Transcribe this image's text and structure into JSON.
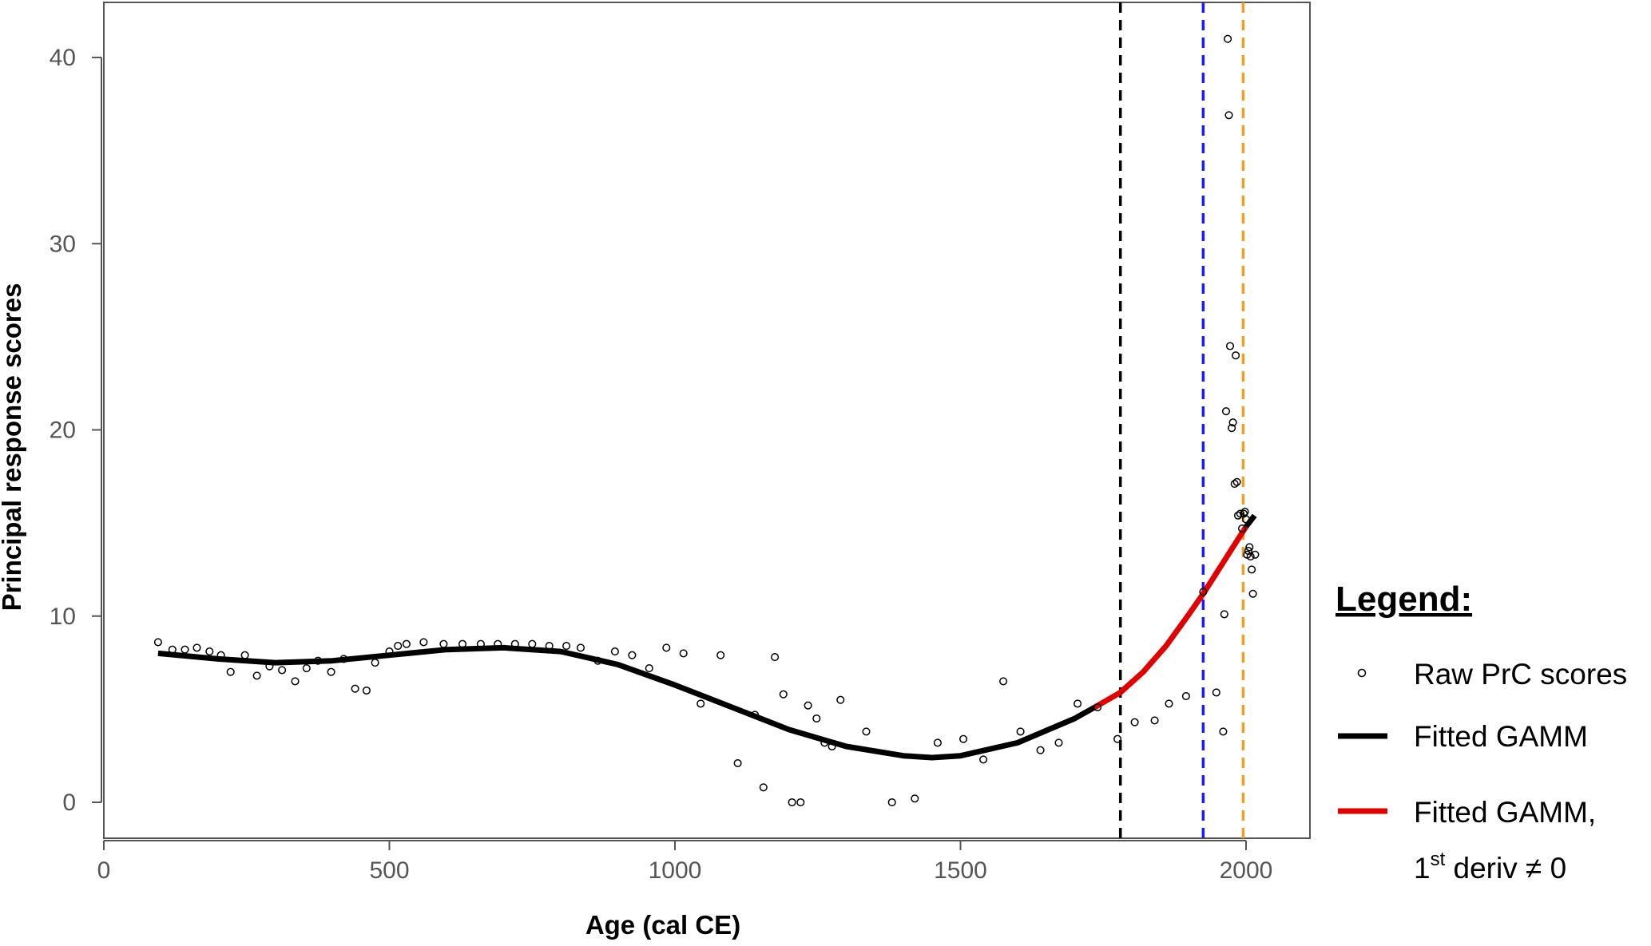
{
  "chart_data": {
    "type": "scatter",
    "xlabel": "Age (cal CE)",
    "ylabel": "Principal response scores",
    "xlim": [
      0,
      2110
    ],
    "ylim": [
      -2,
      43
    ],
    "x_ticks": [
      0,
      500,
      1000,
      1500,
      2000
    ],
    "y_ticks": [
      0,
      10,
      20,
      30,
      40
    ],
    "grid": false,
    "legend_position": "right",
    "legend": {
      "title": "Legend:",
      "items": [
        {
          "label": "Raw PrC scores",
          "symbol": "open-circle",
          "color": "#000000"
        },
        {
          "label": "Fitted GAMM",
          "symbol": "line",
          "color": "#000000"
        },
        {
          "label": "Fitted GAMM,",
          "label_line2_base": "1",
          "label_line2_sup": "st",
          "label_line2_rest": " deriv ≠ 0",
          "symbol": "line",
          "color": "#e00000"
        }
      ]
    },
    "reference_lines": [
      {
        "x": 1780,
        "color": "#000000",
        "style": "dashed"
      },
      {
        "x": 1925,
        "color": "#1a1aff",
        "style": "dashed"
      },
      {
        "x": 1995,
        "color": "#f0a020",
        "style": "dashed"
      }
    ],
    "raw_points": [
      {
        "x": 95,
        "y": 8.6
      },
      {
        "x": 120,
        "y": 8.2
      },
      {
        "x": 142,
        "y": 8.2
      },
      {
        "x": 163,
        "y": 8.3
      },
      {
        "x": 185,
        "y": 8.1
      },
      {
        "x": 205,
        "y": 7.9
      },
      {
        "x": 222,
        "y": 7.0
      },
      {
        "x": 247,
        "y": 7.9
      },
      {
        "x": 268,
        "y": 6.8
      },
      {
        "x": 290,
        "y": 7.3
      },
      {
        "x": 312,
        "y": 7.1
      },
      {
        "x": 335,
        "y": 6.5
      },
      {
        "x": 355,
        "y": 7.2
      },
      {
        "x": 375,
        "y": 7.6
      },
      {
        "x": 398,
        "y": 7.0
      },
      {
        "x": 420,
        "y": 7.7
      },
      {
        "x": 440,
        "y": 6.1
      },
      {
        "x": 460,
        "y": 6.0
      },
      {
        "x": 475,
        "y": 7.5
      },
      {
        "x": 500,
        "y": 8.1
      },
      {
        "x": 515,
        "y": 8.4
      },
      {
        "x": 530,
        "y": 8.5
      },
      {
        "x": 560,
        "y": 8.6
      },
      {
        "x": 595,
        "y": 8.5
      },
      {
        "x": 628,
        "y": 8.5
      },
      {
        "x": 660,
        "y": 8.5
      },
      {
        "x": 690,
        "y": 8.5
      },
      {
        "x": 720,
        "y": 8.5
      },
      {
        "x": 750,
        "y": 8.5
      },
      {
        "x": 780,
        "y": 8.4
      },
      {
        "x": 810,
        "y": 8.4
      },
      {
        "x": 835,
        "y": 8.3
      },
      {
        "x": 865,
        "y": 7.6
      },
      {
        "x": 895,
        "y": 8.1
      },
      {
        "x": 925,
        "y": 7.9
      },
      {
        "x": 955,
        "y": 7.2
      },
      {
        "x": 985,
        "y": 8.3
      },
      {
        "x": 1015,
        "y": 8.0
      },
      {
        "x": 1045,
        "y": 5.3
      },
      {
        "x": 1080,
        "y": 7.9
      },
      {
        "x": 1110,
        "y": 2.1
      },
      {
        "x": 1140,
        "y": 4.7
      },
      {
        "x": 1155,
        "y": 0.8
      },
      {
        "x": 1175,
        "y": 7.8
      },
      {
        "x": 1190,
        "y": 5.8
      },
      {
        "x": 1205,
        "y": 0.0
      },
      {
        "x": 1220,
        "y": 0.0
      },
      {
        "x": 1233,
        "y": 5.2
      },
      {
        "x": 1248,
        "y": 4.5
      },
      {
        "x": 1262,
        "y": 3.2
      },
      {
        "x": 1275,
        "y": 3.0
      },
      {
        "x": 1290,
        "y": 5.5
      },
      {
        "x": 1335,
        "y": 3.8
      },
      {
        "x": 1380,
        "y": 0.0
      },
      {
        "x": 1420,
        "y": 0.2
      },
      {
        "x": 1460,
        "y": 3.2
      },
      {
        "x": 1505,
        "y": 3.4
      },
      {
        "x": 1540,
        "y": 2.3
      },
      {
        "x": 1575,
        "y": 6.5
      },
      {
        "x": 1605,
        "y": 3.8
      },
      {
        "x": 1640,
        "y": 2.8
      },
      {
        "x": 1672,
        "y": 3.2
      },
      {
        "x": 1705,
        "y": 5.3
      },
      {
        "x": 1740,
        "y": 5.1
      },
      {
        "x": 1775,
        "y": 3.4
      },
      {
        "x": 1805,
        "y": 4.3
      },
      {
        "x": 1840,
        "y": 4.4
      },
      {
        "x": 1865,
        "y": 5.3
      },
      {
        "x": 1895,
        "y": 5.7
      },
      {
        "x": 1925,
        "y": 11.3
      },
      {
        "x": 1948,
        "y": 5.9
      },
      {
        "x": 1960,
        "y": 3.8
      },
      {
        "x": 1962,
        "y": 10.1
      },
      {
        "x": 1965,
        "y": 21.0
      },
      {
        "x": 1968,
        "y": 41.0
      },
      {
        "x": 1970,
        "y": 36.9
      },
      {
        "x": 1972,
        "y": 24.5
      },
      {
        "x": 1975,
        "y": 20.1
      },
      {
        "x": 1977,
        "y": 20.4
      },
      {
        "x": 1980,
        "y": 17.1
      },
      {
        "x": 1982,
        "y": 24.0
      },
      {
        "x": 1984,
        "y": 17.2
      },
      {
        "x": 1986,
        "y": 15.4
      },
      {
        "x": 1990,
        "y": 15.5
      },
      {
        "x": 1993,
        "y": 14.7
      },
      {
        "x": 1996,
        "y": 15.5
      },
      {
        "x": 1998,
        "y": 15.6
      },
      {
        "x": 2000,
        "y": 15.2
      },
      {
        "x": 2002,
        "y": 13.3
      },
      {
        "x": 2004,
        "y": 13.5
      },
      {
        "x": 2006,
        "y": 13.7
      },
      {
        "x": 2008,
        "y": 13.2
      },
      {
        "x": 2010,
        "y": 12.5
      },
      {
        "x": 2012,
        "y": 11.2
      },
      {
        "x": 2016,
        "y": 13.3
      }
    ],
    "fitted_black_segment_1": [
      {
        "x": 95,
        "y": 8.0
      },
      {
        "x": 200,
        "y": 7.7
      },
      {
        "x": 300,
        "y": 7.5
      },
      {
        "x": 400,
        "y": 7.6
      },
      {
        "x": 500,
        "y": 7.9
      },
      {
        "x": 600,
        "y": 8.2
      },
      {
        "x": 700,
        "y": 8.3
      },
      {
        "x": 800,
        "y": 8.1
      },
      {
        "x": 900,
        "y": 7.4
      },
      {
        "x": 1000,
        "y": 6.3
      },
      {
        "x": 1100,
        "y": 5.1
      },
      {
        "x": 1200,
        "y": 3.9
      },
      {
        "x": 1300,
        "y": 3.0
      },
      {
        "x": 1400,
        "y": 2.5
      },
      {
        "x": 1450,
        "y": 2.4
      },
      {
        "x": 1500,
        "y": 2.5
      },
      {
        "x": 1600,
        "y": 3.2
      },
      {
        "x": 1700,
        "y": 4.5
      },
      {
        "x": 1735,
        "y": 5.1
      }
    ],
    "fitted_red_segment": [
      {
        "x": 1735,
        "y": 5.1
      },
      {
        "x": 1780,
        "y": 5.9
      },
      {
        "x": 1820,
        "y": 7.0
      },
      {
        "x": 1860,
        "y": 8.4
      },
      {
        "x": 1900,
        "y": 10.1
      },
      {
        "x": 1925,
        "y": 11.2
      },
      {
        "x": 1950,
        "y": 12.4
      },
      {
        "x": 1975,
        "y": 13.6
      },
      {
        "x": 2000,
        "y": 14.8
      }
    ],
    "fitted_black_segment_2": [
      {
        "x": 2000,
        "y": 14.8
      },
      {
        "x": 2015,
        "y": 15.4
      }
    ]
  }
}
